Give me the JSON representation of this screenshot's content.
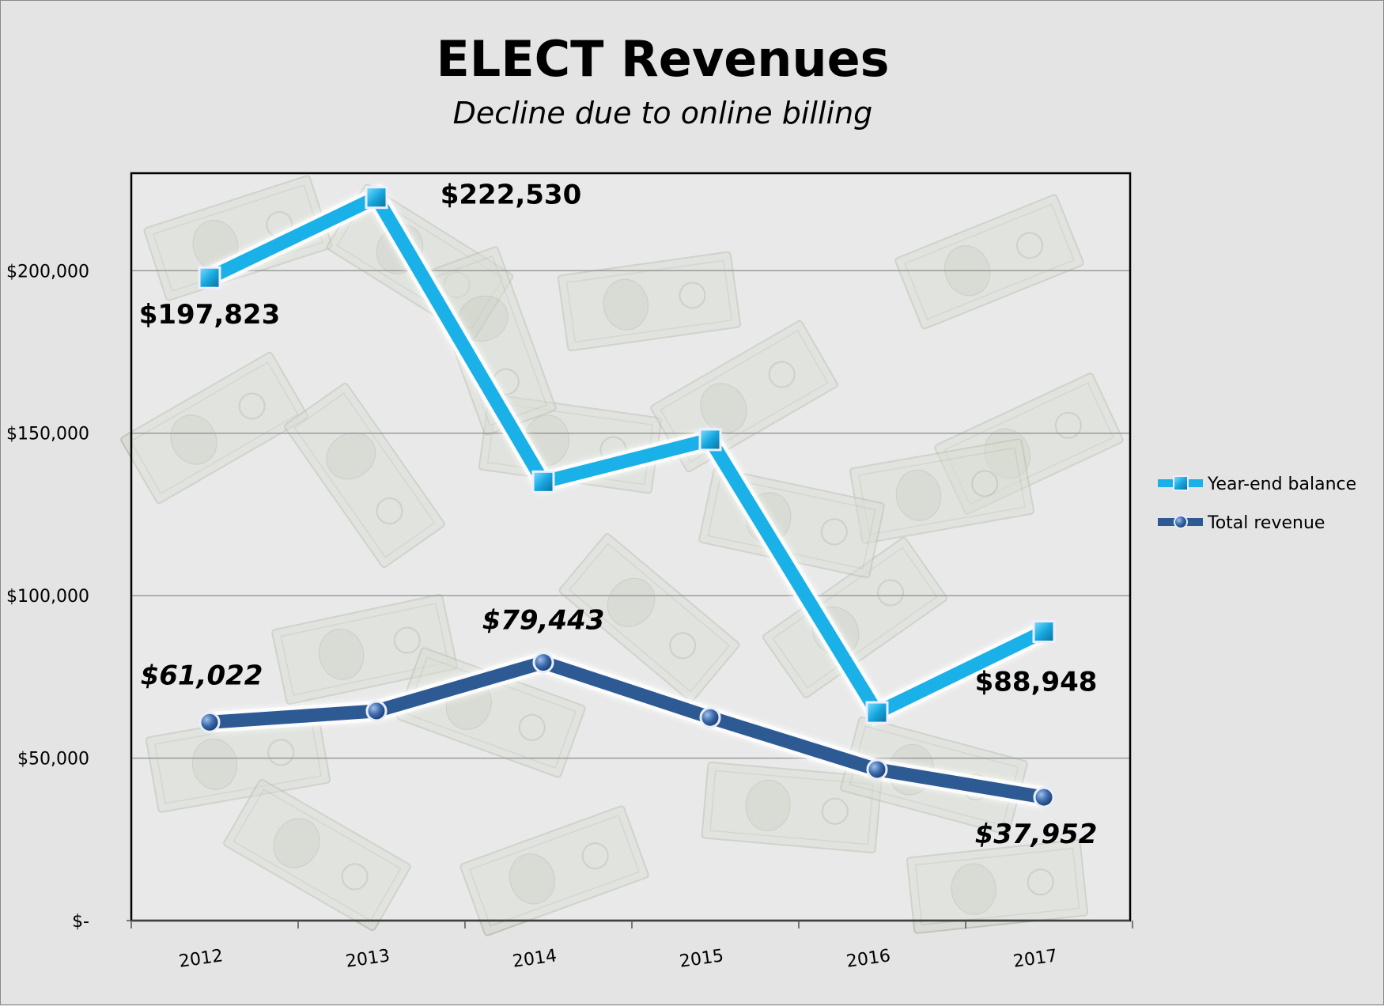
{
  "chart_data": {
    "type": "line",
    "title": "ELECT Revenues",
    "subtitle": "Decline due to online billing",
    "categories": [
      "2012",
      "2013",
      "2014",
      "2015",
      "2016",
      "2017"
    ],
    "series": [
      {
        "name": "Year-end balance",
        "values": [
          197823,
          222530,
          135000,
          148000,
          64000,
          88948
        ],
        "color": "#1ab0e8",
        "marker": "square",
        "data_labels": [
          "$197,823",
          "$222,530",
          "",
          "",
          "",
          "$88,948"
        ]
      },
      {
        "name": "Total revenue",
        "values": [
          61022,
          64500,
          79443,
          62500,
          46500,
          37952
        ],
        "color": "#2e5a94",
        "marker": "circle",
        "data_labels": [
          "$61,022",
          "",
          "$79,443",
          "",
          "",
          "$37,952"
        ]
      }
    ],
    "ylim": [
      0,
      230000
    ],
    "yticks": [
      0,
      50000,
      100000,
      150000,
      200000
    ],
    "ytick_labels": [
      "$-",
      "$50,000",
      "$100,000",
      "$150,000",
      "$200,000"
    ],
    "grid": true,
    "legend_position": "right",
    "background": "falling dollar bills"
  }
}
